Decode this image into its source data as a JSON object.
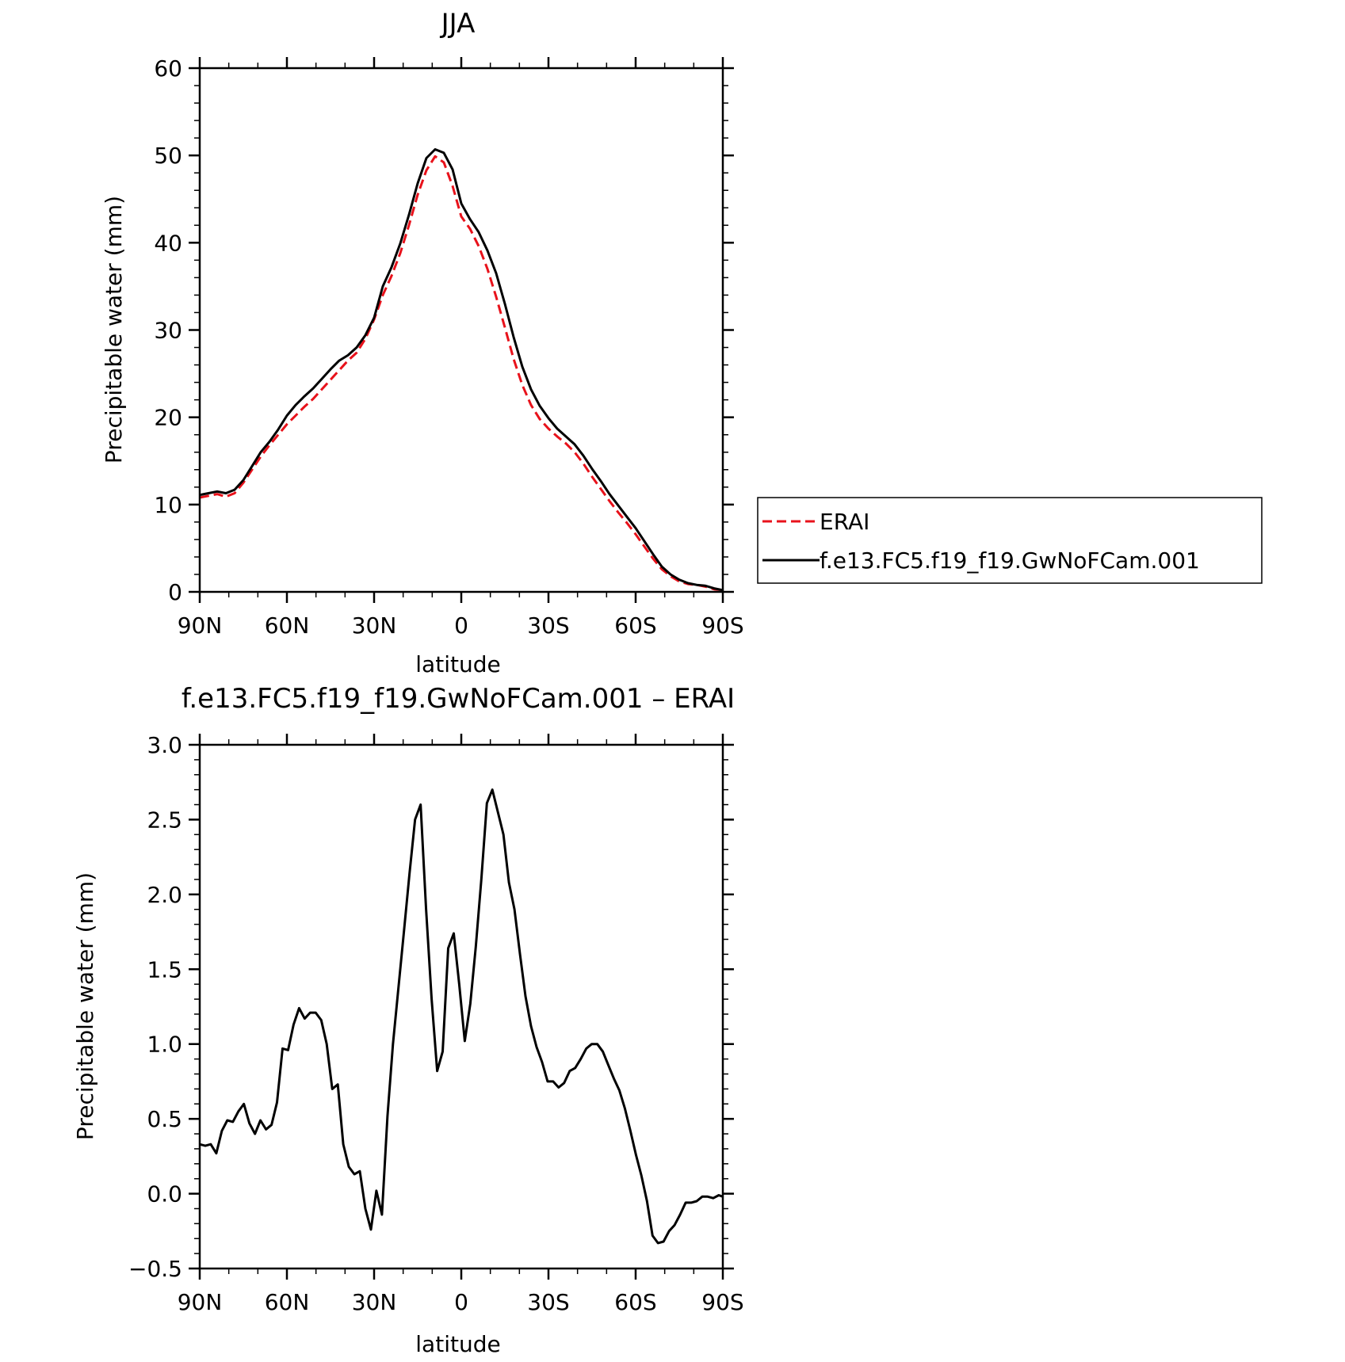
{
  "chart_data": [
    {
      "type": "line",
      "title": "JJA",
      "xlabel": "latitude",
      "ylabel": "Precipitable water (mm)",
      "xlim": [
        90,
        -90
      ],
      "ylim": [
        0,
        60
      ],
      "x_ticks": [
        90,
        60,
        30,
        0,
        -30,
        -60,
        -90
      ],
      "x_tick_labels": [
        "90N",
        "60N",
        "30N",
        "0",
        "30S",
        "60S",
        "90S"
      ],
      "y_ticks": [
        0,
        10,
        20,
        30,
        40,
        50,
        60
      ],
      "y_tick_labels": [
        "0",
        "10",
        "20",
        "30",
        "40",
        "50",
        "60"
      ],
      "legend": {
        "placement": "right",
        "entries": [
          "ERAI",
          "f.e13.FC5.f19_f19.GwNoFCam.001"
        ]
      },
      "series": [
        {
          "name": "ERAI",
          "color": "#e8121b",
          "dash": "dashed",
          "points": [
            [
              90,
              10.8
            ],
            [
              87,
              11.0
            ],
            [
              84,
              11.2
            ],
            [
              81,
              10.9
            ],
            [
              78,
              11.3
            ],
            [
              75,
              12.5
            ],
            [
              72,
              14.0
            ],
            [
              69,
              15.5
            ],
            [
              66,
              16.8
            ],
            [
              63,
              18.0
            ],
            [
              60,
              19.2
            ],
            [
              57,
              20.2
            ],
            [
              54,
              21.2
            ],
            [
              51,
              22.1
            ],
            [
              48,
              23.2
            ],
            [
              45,
              24.3
            ],
            [
              42,
              25.4
            ],
            [
              39,
              26.5
            ],
            [
              36,
              27.4
            ],
            [
              33,
              29.0
            ],
            [
              30,
              31.2
            ],
            [
              27,
              34.0
            ],
            [
              24,
              36.2
            ],
            [
              21,
              38.8
            ],
            [
              18,
              42.0
            ],
            [
              15,
              45.5
            ],
            [
              12,
              48.3
            ],
            [
              9,
              49.9
            ],
            [
              6,
              49.2
            ],
            [
              3,
              46.5
            ],
            [
              0,
              43.0
            ],
            [
              -3,
              41.6
            ],
            [
              -6,
              39.6
            ],
            [
              -9,
              37.0
            ],
            [
              -12,
              33.8
            ],
            [
              -15,
              30.3
            ],
            [
              -18,
              26.7
            ],
            [
              -21,
              23.7
            ],
            [
              -24,
              21.4
            ],
            [
              -27,
              19.8
            ],
            [
              -30,
              18.7
            ],
            [
              -33,
              17.8
            ],
            [
              -36,
              17.0
            ],
            [
              -39,
              16.0
            ],
            [
              -42,
              14.7
            ],
            [
              -45,
              13.2
            ],
            [
              -48,
              11.8
            ],
            [
              -51,
              10.4
            ],
            [
              -54,
              9.1
            ],
            [
              -57,
              7.9
            ],
            [
              -60,
              6.6
            ],
            [
              -63,
              5.2
            ],
            [
              -66,
              3.8
            ],
            [
              -69,
              2.6
            ],
            [
              -72,
              1.8
            ],
            [
              -75,
              1.2
            ],
            [
              -78,
              0.9
            ],
            [
              -81,
              0.8
            ],
            [
              -84,
              0.6
            ],
            [
              -87,
              0.3
            ],
            [
              -90,
              0.2
            ]
          ]
        },
        {
          "name": "f.e13.FC5.f19_f19.GwNoFCam.001",
          "color": "#000000",
          "dash": "solid",
          "points": [
            [
              90,
              11.1
            ],
            [
              87,
              11.3
            ],
            [
              84,
              11.5
            ],
            [
              81,
              11.3
            ],
            [
              78,
              11.7
            ],
            [
              75,
              12.8
            ],
            [
              72,
              14.4
            ],
            [
              69,
              16.0
            ],
            [
              66,
              17.2
            ],
            [
              63,
              18.6
            ],
            [
              60,
              20.2
            ],
            [
              57,
              21.4
            ],
            [
              54,
              22.4
            ],
            [
              51,
              23.3
            ],
            [
              48,
              24.4
            ],
            [
              45,
              25.5
            ],
            [
              42,
              26.5
            ],
            [
              39,
              27.1
            ],
            [
              36,
              28.0
            ],
            [
              33,
              29.4
            ],
            [
              30,
              31.4
            ],
            [
              27,
              35.0
            ],
            [
              24,
              37.2
            ],
            [
              21,
              39.9
            ],
            [
              18,
              43.2
            ],
            [
              15,
              46.8
            ],
            [
              12,
              49.7
            ],
            [
              9,
              50.7
            ],
            [
              6,
              50.3
            ],
            [
              3,
              48.4
            ],
            [
              0,
              44.5
            ],
            [
              -3,
              42.7
            ],
            [
              -6,
              41.2
            ],
            [
              -9,
              39.1
            ],
            [
              -12,
              36.5
            ],
            [
              -15,
              33.0
            ],
            [
              -18,
              29.2
            ],
            [
              -21,
              25.8
            ],
            [
              -24,
              23.2
            ],
            [
              -27,
              21.3
            ],
            [
              -30,
              19.9
            ],
            [
              -33,
              18.7
            ],
            [
              -36,
              17.8
            ],
            [
              -39,
              16.9
            ],
            [
              -42,
              15.6
            ],
            [
              -45,
              14.1
            ],
            [
              -48,
              12.7
            ],
            [
              -51,
              11.2
            ],
            [
              -54,
              9.9
            ],
            [
              -57,
              8.6
            ],
            [
              -60,
              7.3
            ],
            [
              -63,
              5.8
            ],
            [
              -66,
              4.3
            ],
            [
              -69,
              2.9
            ],
            [
              -72,
              2.0
            ],
            [
              -75,
              1.4
            ],
            [
              -78,
              1.0
            ],
            [
              -81,
              0.8
            ],
            [
              -84,
              0.7
            ],
            [
              -87,
              0.4
            ],
            [
              -90,
              0.2
            ]
          ]
        }
      ]
    },
    {
      "type": "line",
      "title": "f.e13.FC5.f19_f19.GwNoFCam.001 – ERAI",
      "xlabel": "latitude",
      "ylabel": "Precipitable water (mm)",
      "xlim": [
        90,
        -90
      ],
      "ylim": [
        -0.5,
        3.0
      ],
      "x_ticks": [
        90,
        60,
        30,
        0,
        -30,
        -60,
        -90
      ],
      "x_tick_labels": [
        "90N",
        "60N",
        "30N",
        "0",
        "30S",
        "60S",
        "90S"
      ],
      "y_ticks": [
        -0.5,
        0.0,
        0.5,
        1.0,
        1.5,
        2.0,
        2.5,
        3.0
      ],
      "y_tick_labels": [
        "−0.5",
        "0.0",
        "0.5",
        "1.0",
        "1.5",
        "2.0",
        "2.5",
        "3.0"
      ],
      "series": [
        {
          "color": "#000000",
          "dash": "solid",
          "points": [
            [
              90,
              0.33
            ],
            [
              88.1,
              0.32
            ],
            [
              86.2,
              0.33
            ],
            [
              84.3,
              0.27
            ],
            [
              82.4,
              0.42
            ],
            [
              80.5,
              0.49
            ],
            [
              78.6,
              0.48
            ],
            [
              76.7,
              0.55
            ],
            [
              74.8,
              0.6
            ],
            [
              72.9,
              0.47
            ],
            [
              71,
              0.4
            ],
            [
              69.1,
              0.49
            ],
            [
              67.2,
              0.43
            ],
            [
              65.3,
              0.46
            ],
            [
              63.4,
              0.61
            ],
            [
              61.5,
              0.97
            ],
            [
              59.6,
              0.96
            ],
            [
              57.7,
              1.13
            ],
            [
              55.8,
              1.24
            ],
            [
              53.9,
              1.17
            ],
            [
              52,
              1.21
            ],
            [
              50.1,
              1.21
            ],
            [
              48.2,
              1.16
            ],
            [
              46.3,
              1.0
            ],
            [
              44.4,
              0.7
            ],
            [
              42.5,
              0.73
            ],
            [
              40.6,
              0.33
            ],
            [
              38.7,
              0.18
            ],
            [
              36.8,
              0.13
            ],
            [
              34.9,
              0.15
            ],
            [
              33,
              -0.1
            ],
            [
              31.1,
              -0.24
            ],
            [
              29.2,
              0.02
            ],
            [
              27.3,
              -0.14
            ],
            [
              25.4,
              0.52
            ],
            [
              23.5,
              1.0
            ],
            [
              21.6,
              1.38
            ],
            [
              19.7,
              1.76
            ],
            [
              17.8,
              2.14
            ],
            [
              15.9,
              2.5
            ],
            [
              14,
              2.6
            ],
            [
              12.1,
              1.9
            ],
            [
              10.2,
              1.3
            ],
            [
              8.3,
              0.82
            ],
            [
              6.4,
              0.95
            ],
            [
              4.5,
              1.64
            ],
            [
              2.6,
              1.74
            ],
            [
              0.7,
              1.4
            ],
            [
              -1.2,
              1.02
            ],
            [
              -3.1,
              1.27
            ],
            [
              -5,
              1.65
            ],
            [
              -6.9,
              2.1
            ],
            [
              -8.8,
              2.61
            ],
            [
              -10.7,
              2.7
            ],
            [
              -12.6,
              2.55
            ],
            [
              -14.5,
              2.4
            ],
            [
              -16.4,
              2.08
            ],
            [
              -18.3,
              1.9
            ],
            [
              -20.2,
              1.6
            ],
            [
              -22.1,
              1.32
            ],
            [
              -24,
              1.12
            ],
            [
              -25.9,
              0.98
            ],
            [
              -27.8,
              0.88
            ],
            [
              -29.7,
              0.75
            ],
            [
              -31.6,
              0.75
            ],
            [
              -33.5,
              0.71
            ],
            [
              -35.4,
              0.74
            ],
            [
              -37.3,
              0.82
            ],
            [
              -39.2,
              0.84
            ],
            [
              -41.1,
              0.9
            ],
            [
              -43,
              0.97
            ],
            [
              -44.9,
              1.0
            ],
            [
              -46.8,
              1.0
            ],
            [
              -48.7,
              0.95
            ],
            [
              -50.6,
              0.86
            ],
            [
              -52.5,
              0.77
            ],
            [
              -54.4,
              0.69
            ],
            [
              -56.3,
              0.57
            ],
            [
              -58.2,
              0.42
            ],
            [
              -60.1,
              0.26
            ],
            [
              -62,
              0.12
            ],
            [
              -63.9,
              -0.05
            ],
            [
              -65.8,
              -0.28
            ],
            [
              -67.7,
              -0.33
            ],
            [
              -69.6,
              -0.32
            ],
            [
              -71.5,
              -0.25
            ],
            [
              -73.4,
              -0.21
            ],
            [
              -75.3,
              -0.14
            ],
            [
              -77.2,
              -0.06
            ],
            [
              -79.1,
              -0.06
            ],
            [
              -81,
              -0.05
            ],
            [
              -82.9,
              -0.02
            ],
            [
              -84.8,
              -0.02
            ],
            [
              -86.7,
              -0.03
            ],
            [
              -88.6,
              -0.01
            ],
            [
              -90,
              -0.02
            ]
          ]
        }
      ]
    }
  ]
}
